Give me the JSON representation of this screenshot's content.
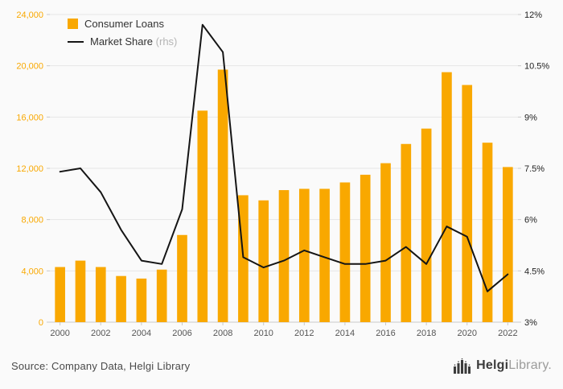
{
  "chart_data": {
    "type": "bar",
    "title": "",
    "categories": [
      "2000",
      "2001",
      "2002",
      "2003",
      "2004",
      "2005",
      "2006",
      "2007",
      "2008",
      "2009",
      "2010",
      "2011",
      "2012",
      "2013",
      "2014",
      "2015",
      "2016",
      "2017",
      "2018",
      "2019",
      "2020",
      "2021",
      "2022"
    ],
    "series": [
      {
        "name": "Consumer Loans",
        "type": "bar",
        "axis": "left",
        "values": [
          4300,
          4800,
          4300,
          3600,
          3400,
          4100,
          6800,
          16500,
          19700,
          9900,
          9500,
          10300,
          10400,
          10400,
          10900,
          11500,
          12400,
          13900,
          15100,
          19500,
          18500,
          14000,
          12100
        ]
      },
      {
        "name": "Market Share (rhs)",
        "type": "line",
        "axis": "right",
        "values": [
          7.4,
          7.5,
          6.8,
          5.7,
          4.8,
          4.7,
          6.3,
          11.7,
          10.9,
          4.9,
          4.6,
          4.8,
          5.1,
          4.9,
          4.7,
          4.7,
          4.8,
          5.2,
          4.7,
          5.8,
          5.5,
          3.9,
          4.4
        ]
      }
    ],
    "left_axis": {
      "min": 0,
      "max": 24000,
      "tick_values": [
        0,
        4000,
        8000,
        12000,
        16000,
        20000,
        24000
      ],
      "tick_labels": [
        "0",
        "4,000",
        "8,000",
        "12,000",
        "16,000",
        "20,000",
        "24,000"
      ]
    },
    "right_axis": {
      "min": 3,
      "max": 12,
      "tick_values": [
        3,
        4.5,
        6,
        7.5,
        9,
        10.5,
        12
      ],
      "tick_labels": [
        "3%",
        "4.5%",
        "6%",
        "7.5%",
        "9%",
        "10.5%",
        "12%"
      ]
    },
    "x_tick_labels": [
      "2000",
      "2002",
      "2004",
      "2006",
      "2008",
      "2010",
      "2012",
      "2014",
      "2016",
      "2018",
      "2020",
      "2022"
    ],
    "grid": true,
    "legend_position": "top-left"
  },
  "legend": {
    "bar_label": "Consumer Loans",
    "line_label": "Market Share",
    "line_label_suffix": "(rhs)"
  },
  "colors": {
    "bar": "#F9A800",
    "line": "#151515",
    "left_axis_text": "#F9A800",
    "right_axis_text": "#222222",
    "x_axis_text": "#555555",
    "grid": "#E6E6E6",
    "axis_line": "#C9C9C9",
    "background": "#FAFAFA"
  },
  "footer": {
    "source": "Source: Company Data, Helgi Library",
    "logo_text_primary": "Helgi",
    "logo_text_secondary": "Library."
  }
}
